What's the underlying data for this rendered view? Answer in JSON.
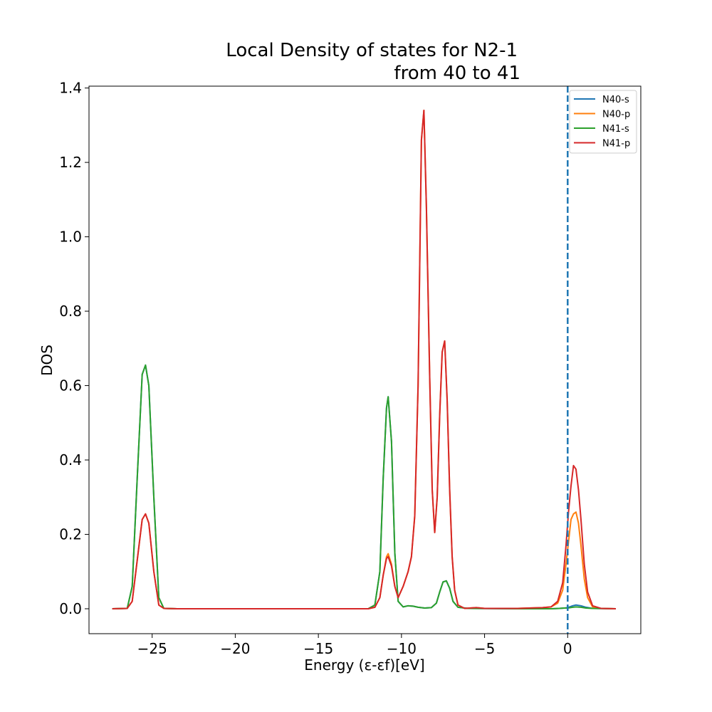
{
  "chart_data": {
    "type": "line",
    "title_lines": [
      "Local Density of states for N2-1",
      "from 40 to 41"
    ],
    "xlabel": "Energy (ε-εf)[eV]",
    "ylabel": "DOS",
    "xlim": [
      -28.8,
      4.4
    ],
    "ylim": [
      -0.067,
      1.405
    ],
    "xticks": [
      -25,
      -20,
      -15,
      -10,
      -5,
      0
    ],
    "xtick_labels": [
      "−25",
      "−20",
      "−15",
      "−10",
      "−5",
      "0"
    ],
    "yticks": [
      0.0,
      0.2,
      0.4,
      0.6,
      0.8,
      1.0,
      1.2,
      1.4
    ],
    "ytick_labels": [
      "0.0",
      "0.2",
      "0.4",
      "0.6",
      "0.8",
      "1.0",
      "1.2",
      "1.4"
    ],
    "legend_position": "top-right",
    "fermi_line": {
      "x": 0,
      "style": "dashed",
      "color": "#1f77b4"
    },
    "series": [
      {
        "name": "N40-s",
        "color": "#1f77b4",
        "points": [
          [
            -27.4,
            0
          ],
          [
            -26.5,
            0.001
          ],
          [
            -26.2,
            0.06
          ],
          [
            -25.9,
            0.35
          ],
          [
            -25.6,
            0.63
          ],
          [
            -25.4,
            0.655
          ],
          [
            -25.2,
            0.6
          ],
          [
            -24.9,
            0.3
          ],
          [
            -24.6,
            0.03
          ],
          [
            -24.3,
            0.001
          ],
          [
            -23.5,
            0
          ],
          [
            -12,
            0
          ],
          [
            -11.6,
            0.01
          ],
          [
            -11.3,
            0.1
          ],
          [
            -11.1,
            0.35
          ],
          [
            -10.9,
            0.54
          ],
          [
            -10.8,
            0.57
          ],
          [
            -10.6,
            0.45
          ],
          [
            -10.4,
            0.15
          ],
          [
            -10.2,
            0.02
          ],
          [
            -9.9,
            0.005
          ],
          [
            -9.6,
            0.008
          ],
          [
            -9.3,
            0.007
          ],
          [
            -9,
            0.004
          ],
          [
            -8.6,
            0.002
          ],
          [
            -8.2,
            0.003
          ],
          [
            -7.9,
            0.015
          ],
          [
            -7.7,
            0.045
          ],
          [
            -7.5,
            0.072
          ],
          [
            -7.3,
            0.075
          ],
          [
            -7.1,
            0.055
          ],
          [
            -6.9,
            0.02
          ],
          [
            -6.6,
            0.004
          ],
          [
            -6,
            0.001
          ],
          [
            -3,
            0
          ],
          [
            -1,
            0
          ],
          [
            -0.5,
            0.001
          ],
          [
            -0.2,
            0.002
          ],
          [
            0,
            0.003
          ],
          [
            0.3,
            0.008
          ],
          [
            0.5,
            0.01
          ],
          [
            0.8,
            0.008
          ],
          [
            1.1,
            0.004
          ],
          [
            1.5,
            0.001
          ],
          [
            2.9,
            0
          ]
        ]
      },
      {
        "name": "N40-p",
        "color": "#ff7f0e",
        "points": [
          [
            -27.4,
            0
          ],
          [
            -26.5,
            0.001
          ],
          [
            -26.2,
            0.02
          ],
          [
            -25.9,
            0.13
          ],
          [
            -25.6,
            0.24
          ],
          [
            -25.4,
            0.255
          ],
          [
            -25.2,
            0.23
          ],
          [
            -24.9,
            0.1
          ],
          [
            -24.6,
            0.01
          ],
          [
            -24.3,
            0.001
          ],
          [
            -23.5,
            0
          ],
          [
            -12,
            0
          ],
          [
            -11.6,
            0.004
          ],
          [
            -11.3,
            0.03
          ],
          [
            -11.1,
            0.09
          ],
          [
            -10.9,
            0.14
          ],
          [
            -10.8,
            0.148
          ],
          [
            -10.6,
            0.12
          ],
          [
            -10.4,
            0.06
          ],
          [
            -10.2,
            0.03
          ],
          [
            -9.9,
            0.06
          ],
          [
            -9.6,
            0.1
          ],
          [
            -9.4,
            0.14
          ],
          [
            -9.2,
            0.25
          ],
          [
            -9.0,
            0.6
          ],
          [
            -8.8,
            1.26
          ],
          [
            -8.65,
            1.34
          ],
          [
            -8.5,
            1.08
          ],
          [
            -8.3,
            0.62
          ],
          [
            -8.15,
            0.32
          ],
          [
            -8.0,
            0.205
          ],
          [
            -7.85,
            0.3
          ],
          [
            -7.7,
            0.52
          ],
          [
            -7.55,
            0.69
          ],
          [
            -7.4,
            0.72
          ],
          [
            -7.25,
            0.56
          ],
          [
            -7.1,
            0.32
          ],
          [
            -6.95,
            0.14
          ],
          [
            -6.8,
            0.05
          ],
          [
            -6.6,
            0.01
          ],
          [
            -6.2,
            0.001
          ],
          [
            -5.5,
            0.003
          ],
          [
            -5.0,
            0.001
          ],
          [
            -3,
            0.001
          ],
          [
            -1.5,
            0.003
          ],
          [
            -1,
            0.005
          ],
          [
            -0.6,
            0.015
          ],
          [
            -0.3,
            0.05
          ],
          [
            -0.1,
            0.12
          ],
          [
            0.05,
            0.18
          ],
          [
            0.2,
            0.24
          ],
          [
            0.35,
            0.255
          ],
          [
            0.5,
            0.26
          ],
          [
            0.65,
            0.23
          ],
          [
            0.8,
            0.17
          ],
          [
            1.0,
            0.08
          ],
          [
            1.2,
            0.03
          ],
          [
            1.5,
            0.005
          ],
          [
            2.0,
            0.001
          ],
          [
            2.9,
            0
          ]
        ]
      },
      {
        "name": "N41-s",
        "color": "#2ca02c",
        "points": [
          [
            -27.4,
            0
          ],
          [
            -26.5,
            0.001
          ],
          [
            -26.2,
            0.06
          ],
          [
            -25.9,
            0.35
          ],
          [
            -25.6,
            0.63
          ],
          [
            -25.4,
            0.655
          ],
          [
            -25.2,
            0.6
          ],
          [
            -24.9,
            0.3
          ],
          [
            -24.6,
            0.03
          ],
          [
            -24.3,
            0.001
          ],
          [
            -23.5,
            0
          ],
          [
            -12,
            0
          ],
          [
            -11.6,
            0.01
          ],
          [
            -11.3,
            0.1
          ],
          [
            -11.1,
            0.35
          ],
          [
            -10.9,
            0.54
          ],
          [
            -10.8,
            0.57
          ],
          [
            -10.6,
            0.45
          ],
          [
            -10.4,
            0.15
          ],
          [
            -10.2,
            0.02
          ],
          [
            -9.9,
            0.005
          ],
          [
            -9.6,
            0.008
          ],
          [
            -9.3,
            0.007
          ],
          [
            -9,
            0.004
          ],
          [
            -8.6,
            0.002
          ],
          [
            -8.2,
            0.003
          ],
          [
            -7.9,
            0.015
          ],
          [
            -7.7,
            0.045
          ],
          [
            -7.5,
            0.072
          ],
          [
            -7.3,
            0.075
          ],
          [
            -7.1,
            0.055
          ],
          [
            -6.9,
            0.02
          ],
          [
            -6.6,
            0.004
          ],
          [
            -6,
            0.001
          ],
          [
            -3,
            0
          ],
          [
            -1,
            0
          ],
          [
            -0.5,
            0.001
          ],
          [
            -0.2,
            0.002
          ],
          [
            0,
            0.002
          ],
          [
            0.3,
            0.004
          ],
          [
            0.5,
            0.005
          ],
          [
            0.8,
            0.004
          ],
          [
            1.1,
            0.002
          ],
          [
            1.5,
            0.001
          ],
          [
            2.9,
            0
          ]
        ]
      },
      {
        "name": "N41-p",
        "color": "#d62728",
        "points": [
          [
            -27.4,
            0
          ],
          [
            -26.5,
            0.001
          ],
          [
            -26.2,
            0.02
          ],
          [
            -25.9,
            0.13
          ],
          [
            -25.6,
            0.24
          ],
          [
            -25.4,
            0.255
          ],
          [
            -25.2,
            0.23
          ],
          [
            -24.9,
            0.1
          ],
          [
            -24.6,
            0.01
          ],
          [
            -24.3,
            0.001
          ],
          [
            -23.5,
            0
          ],
          [
            -12,
            0
          ],
          [
            -11.6,
            0.004
          ],
          [
            -11.3,
            0.03
          ],
          [
            -11.1,
            0.09
          ],
          [
            -10.9,
            0.135
          ],
          [
            -10.8,
            0.14
          ],
          [
            -10.6,
            0.115
          ],
          [
            -10.4,
            0.06
          ],
          [
            -10.2,
            0.03
          ],
          [
            -9.9,
            0.06
          ],
          [
            -9.6,
            0.1
          ],
          [
            -9.4,
            0.14
          ],
          [
            -9.2,
            0.25
          ],
          [
            -9.0,
            0.6
          ],
          [
            -8.8,
            1.26
          ],
          [
            -8.65,
            1.34
          ],
          [
            -8.5,
            1.08
          ],
          [
            -8.3,
            0.62
          ],
          [
            -8.15,
            0.32
          ],
          [
            -8.0,
            0.205
          ],
          [
            -7.85,
            0.3
          ],
          [
            -7.7,
            0.52
          ],
          [
            -7.55,
            0.69
          ],
          [
            -7.4,
            0.72
          ],
          [
            -7.25,
            0.56
          ],
          [
            -7.1,
            0.32
          ],
          [
            -6.95,
            0.14
          ],
          [
            -6.8,
            0.05
          ],
          [
            -6.6,
            0.01
          ],
          [
            -6.2,
            0.001
          ],
          [
            -5.5,
            0.003
          ],
          [
            -5.0,
            0.001
          ],
          [
            -3,
            0.001
          ],
          [
            -1.5,
            0.003
          ],
          [
            -1,
            0.005
          ],
          [
            -0.6,
            0.02
          ],
          [
            -0.3,
            0.07
          ],
          [
            -0.1,
            0.17
          ],
          [
            0.05,
            0.26
          ],
          [
            0.2,
            0.33
          ],
          [
            0.35,
            0.385
          ],
          [
            0.5,
            0.375
          ],
          [
            0.65,
            0.32
          ],
          [
            0.8,
            0.24
          ],
          [
            1.0,
            0.12
          ],
          [
            1.2,
            0.045
          ],
          [
            1.5,
            0.008
          ],
          [
            2.0,
            0.001
          ],
          [
            2.9,
            0
          ]
        ]
      }
    ]
  }
}
